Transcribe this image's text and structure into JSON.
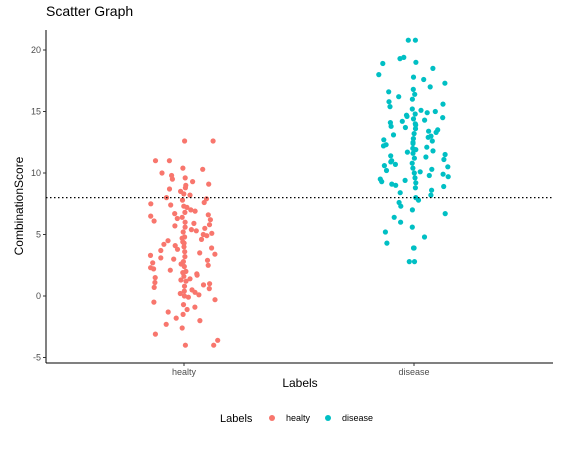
{
  "chart_data": {
    "type": "scatter",
    "title": "Scatter Graph",
    "xlabel": "Labels",
    "ylabel": "CombinationScore",
    "categories": [
      "healty",
      "disease"
    ],
    "ylim": [
      -5,
      21.5
    ],
    "yticks": [
      -5,
      0,
      5,
      10,
      15,
      20
    ],
    "reference_line": {
      "y": 8,
      "style": "dotted"
    },
    "grid": false,
    "legend": {
      "title": "Labels",
      "position": "bottom",
      "entries": [
        "healty",
        "disease"
      ]
    },
    "colors": {
      "healty": "#F8766D",
      "disease": "#00BFC4"
    },
    "series": [
      {
        "name": "healty",
        "category": "healty",
        "y": [
          12.6,
          12.6,
          11,
          11,
          10.4,
          10.3,
          10,
          9.8,
          9.6,
          9.5,
          9.3,
          9.1,
          9,
          8.8,
          8.7,
          8.5,
          8.3,
          8.2,
          8,
          7.9,
          7.8,
          7.6,
          7.5,
          7.4,
          7.3,
          7.2,
          7,
          6.9,
          6.8,
          6.7,
          6.6,
          6.5,
          6.4,
          6.3,
          6.2,
          6.1,
          6,
          5.9,
          5.8,
          5.7,
          5.6,
          5.5,
          5.4,
          5.3,
          5.2,
          5.1,
          5,
          4.9,
          4.8,
          4.7,
          4.6,
          4.5,
          4.4,
          4.3,
          4.2,
          4.1,
          4,
          3.9,
          3.8,
          3.7,
          3.6,
          3.5,
          3.4,
          3.3,
          3.2,
          3.1,
          3,
          2.9,
          2.8,
          2.7,
          2.6,
          2.5,
          2.4,
          2.3,
          2.2,
          2.1,
          2,
          1.9,
          1.8,
          1.7,
          1.6,
          1.5,
          1.4,
          1.3,
          1.2,
          1.1,
          1,
          0.9,
          0.8,
          0.7,
          0.6,
          0.5,
          0.4,
          0.3,
          0.2,
          0.1,
          0,
          -0.1,
          -0.3,
          -0.5,
          -0.7,
          -0.9,
          -1.1,
          -1.3,
          -1.5,
          -1.8,
          -2,
          -2.3,
          -2.6,
          -3.1,
          -3.6,
          -4,
          -4
        ]
      },
      {
        "name": "disease",
        "category": "disease",
        "y": [
          20.8,
          20.8,
          19.4,
          19.3,
          19,
          18.9,
          18.5,
          18,
          17.8,
          17.6,
          17.3,
          17,
          16.8,
          16.6,
          16.4,
          16.2,
          16,
          15.8,
          15.6,
          15.4,
          15.2,
          15.1,
          15,
          14.9,
          14.8,
          14.7,
          14.6,
          14.5,
          14.4,
          14.3,
          14.2,
          14.1,
          14,
          13.9,
          13.8,
          13.7,
          13.6,
          13.5,
          13.4,
          13.3,
          13.2,
          13.1,
          13,
          12.9,
          12.8,
          12.7,
          12.6,
          12.5,
          12.4,
          12.3,
          12.2,
          12.1,
          12,
          11.9,
          11.8,
          11.7,
          11.6,
          11.5,
          11.4,
          11.3,
          11.2,
          11.1,
          11,
          10.9,
          10.8,
          10.7,
          10.6,
          10.5,
          10.4,
          10.3,
          10.2,
          10.1,
          10,
          9.9,
          9.8,
          9.7,
          9.6,
          9.5,
          9.4,
          9.3,
          9.2,
          9.1,
          9,
          8.9,
          8.8,
          8.6,
          8.4,
          8.2,
          8,
          7.8,
          7.6,
          7.3,
          7,
          6.7,
          6.4,
          6,
          5.6,
          5.2,
          4.8,
          4.3,
          3.9,
          3.9,
          2.8,
          2.8
        ]
      }
    ]
  }
}
